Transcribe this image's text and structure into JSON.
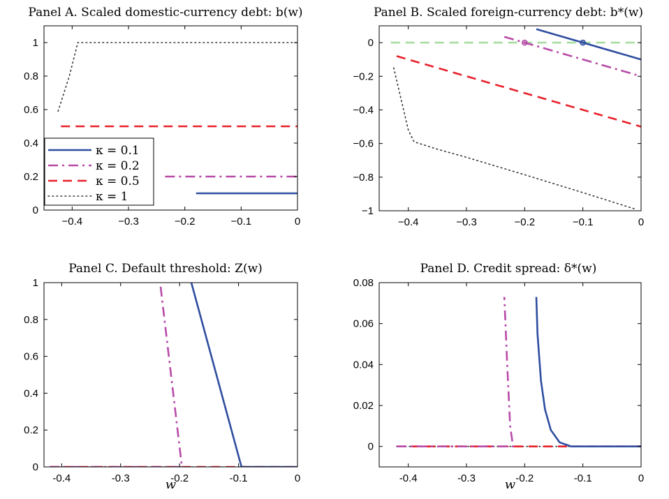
{
  "chart_data": [
    {
      "type": "line",
      "title": "Panel A. Scaled domestic-currency debt: b(w)",
      "xlabel": "",
      "ylabel": "",
      "xlim": [
        -0.45,
        0
      ],
      "ylim": [
        0,
        1.1
      ],
      "xticks": [
        -0.4,
        -0.3,
        -0.2,
        -0.1,
        0
      ],
      "xtick_labels": [
        "−0.4",
        "−0.3",
        "−0.2",
        "−0.1",
        "0"
      ],
      "yticks": [
        0,
        0.2,
        0.4,
        0.6,
        0.8,
        1
      ],
      "ytick_labels": [
        "0",
        "0.2",
        "0.4",
        "0.6",
        "0.8",
        "1"
      ],
      "legend": {
        "placement": "lower-left",
        "entries": [
          "κ = 0.1",
          "κ = 0.2",
          "κ = 0.5",
          "κ = 1"
        ]
      },
      "series": [
        {
          "name": "κ = 0.1",
          "style": "solid",
          "color": "#2e4da0",
          "x": [
            -0.18,
            0
          ],
          "y": [
            0.1,
            0.1
          ]
        },
        {
          "name": "κ = 0.2",
          "style": "dashdot",
          "color": "#b84aa8",
          "x": [
            -0.235,
            0
          ],
          "y": [
            0.2,
            0.2
          ]
        },
        {
          "name": "κ = 0.5",
          "style": "dashed",
          "color": "#e8202a",
          "x": [
            -0.42,
            0
          ],
          "y": [
            0.5,
            0.5
          ]
        },
        {
          "name": "κ = 1",
          "style": "dotted",
          "color": "#333333",
          "x": [
            -0.425,
            -0.405,
            -0.39,
            0
          ],
          "y": [
            0.59,
            0.8,
            1.0,
            1.0
          ]
        }
      ]
    },
    {
      "type": "line",
      "title": "Panel B. Scaled foreign-currency debt: b*(w)",
      "xlabel": "",
      "ylabel": "",
      "xlim": [
        -0.45,
        0
      ],
      "ylim": [
        -1,
        0.1
      ],
      "xticks": [
        -0.4,
        -0.3,
        -0.2,
        -0.1,
        0
      ],
      "xtick_labels": [
        "−0.4",
        "−0.3",
        "−0.2",
        "−0.1",
        "0"
      ],
      "yticks": [
        -1,
        -0.8,
        -0.6,
        -0.4,
        -0.2,
        0
      ],
      "ytick_labels": [
        "−1",
        "−0.8",
        "−0.6",
        "−0.4",
        "−0.2",
        "0"
      ],
      "series": [
        {
          "name": "zero",
          "style": "dashed",
          "color": "#a8dca0",
          "x": [
            -0.43,
            0
          ],
          "y": [
            0,
            0
          ]
        },
        {
          "name": "κ = 0.1",
          "style": "solid",
          "color": "#2e4da0",
          "x": [
            -0.18,
            0
          ],
          "y": [
            0.08,
            -0.1
          ]
        },
        {
          "name": "κ = 0.2",
          "style": "dashdot",
          "color": "#b84aa8",
          "x": [
            -0.235,
            0
          ],
          "y": [
            0.035,
            -0.2
          ]
        },
        {
          "name": "κ = 0.5",
          "style": "dashed",
          "color": "#e8202a",
          "x": [
            -0.42,
            0
          ],
          "y": [
            -0.08,
            -0.5
          ]
        },
        {
          "name": "κ = 1",
          "style": "dotted",
          "color": "#333333",
          "x": [
            -0.425,
            -0.4,
            -0.39,
            -0.35,
            -0.3,
            -0.2,
            -0.1,
            -0.01
          ],
          "y": [
            -0.15,
            -0.52,
            -0.59,
            -0.634,
            -0.682,
            -0.786,
            -0.892,
            -0.99
          ]
        }
      ],
      "markers": [
        {
          "series": "κ = 0.1",
          "x": -0.1,
          "y": 0,
          "color": "#2e4da0"
        },
        {
          "series": "κ = 0.2",
          "x": -0.2,
          "y": 0,
          "color": "#b84aa8"
        }
      ]
    },
    {
      "type": "line",
      "title": "Panel C. Default threshold: Z(w)",
      "xlabel": "w",
      "ylabel": "",
      "xlim": [
        -0.43,
        0
      ],
      "ylim": [
        0,
        1
      ],
      "xticks": [
        -0.4,
        -0.3,
        -0.2,
        -0.1,
        0
      ],
      "xtick_labels": [
        "-0.4",
        "-0.3",
        "-0.2",
        "-0.1",
        "0"
      ],
      "yticks": [
        0,
        0.2,
        0.4,
        0.6,
        0.8,
        1
      ],
      "ytick_labels": [
        "0",
        "0.2",
        "0.4",
        "0.6",
        "0.8",
        "1"
      ],
      "series": [
        {
          "name": "κ = 1",
          "style": "dotted",
          "color": "#333333",
          "x": [
            -0.42,
            0
          ],
          "y": [
            0,
            0
          ]
        },
        {
          "name": "κ = 0.5",
          "style": "dashed",
          "color": "#e8202a",
          "x": [
            -0.42,
            0
          ],
          "y": [
            0,
            0
          ]
        },
        {
          "name": "κ = 0.2",
          "style": "dashdot",
          "color": "#b84aa8",
          "x": [
            -0.42,
            -0.196,
            -0.233
          ],
          "y": [
            0,
            0,
            1
          ]
        },
        {
          "name": "κ = 0.1",
          "style": "solid",
          "color": "#2e4da0",
          "x": [
            0,
            -0.095,
            -0.18
          ],
          "y": [
            0,
            0,
            1
          ]
        }
      ]
    },
    {
      "type": "line",
      "title": "Panel D. Credit spread: δ*(w)",
      "xlabel": "w",
      "ylabel": "",
      "xlim": [
        -0.45,
        0
      ],
      "ylim": [
        -0.01,
        0.08
      ],
      "xticks": [
        -0.4,
        -0.3,
        -0.2,
        -0.1,
        0
      ],
      "xtick_labels": [
        "-0.4",
        "-0.3",
        "-0.2",
        "-0.1",
        "0"
      ],
      "yticks": [
        0,
        0.02,
        0.04,
        0.06,
        0.08
      ],
      "ytick_labels": [
        "0",
        "0.02",
        "0.04",
        "0.06",
        "0.08"
      ],
      "series": [
        {
          "name": "κ = 1",
          "style": "dotted",
          "color": "#333333",
          "x": [
            -0.42,
            0
          ],
          "y": [
            0,
            0
          ]
        },
        {
          "name": "κ = 0.5",
          "style": "dashed",
          "color": "#e8202a",
          "x": [
            -0.42,
            0
          ],
          "y": [
            0,
            0
          ]
        },
        {
          "name": "κ = 0.2",
          "style": "dashdot",
          "color": "#b84aa8",
          "x": [
            -0.42,
            -0.22,
            -0.225,
            -0.23,
            -0.235
          ],
          "y": [
            0,
            0,
            0.01,
            0.04,
            0.073
          ]
        },
        {
          "name": "κ = 0.1",
          "style": "solid",
          "color": "#2e4da0",
          "x": [
            0,
            -0.12,
            -0.14,
            -0.155,
            -0.165,
            -0.172,
            -0.178,
            -0.18
          ],
          "y": [
            0,
            0,
            0.002,
            0.008,
            0.018,
            0.032,
            0.055,
            0.073
          ]
        }
      ]
    }
  ]
}
